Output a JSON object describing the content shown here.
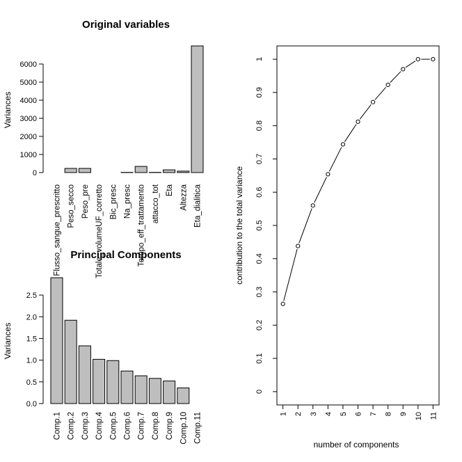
{
  "chart_data": [
    {
      "type": "bar",
      "title": "Original variables",
      "xlabel": "",
      "ylabel": "Variances",
      "ylim": [
        0,
        7000
      ],
      "yticks": [
        0,
        1000,
        2000,
        3000,
        4000,
        5000,
        6000
      ],
      "categories": [
        "Flusso_sangue_prescritto",
        "Peso_secco",
        "Peso_pre",
        "Totale_volumeUF_corretto",
        "Bic_presc",
        "Na_presc",
        "Tempo_eff_trattamento",
        "attacco_tot",
        "Eta",
        "Altezza",
        "Eta_dialitica"
      ],
      "values": [
        0,
        230,
        230,
        0,
        0,
        10,
        340,
        10,
        150,
        80,
        7000
      ],
      "bar_color": "#bebebe"
    },
    {
      "type": "bar",
      "title": "Principal Components",
      "xlabel": "",
      "ylabel": "Variances",
      "ylim": [
        0,
        2.95
      ],
      "yticks": [
        0.0,
        0.5,
        1.0,
        1.5,
        2.0,
        2.5
      ],
      "categories": [
        "Comp.1",
        "Comp.2",
        "Comp.3",
        "Comp.4",
        "Comp.5",
        "Comp.6",
        "Comp.7",
        "Comp.8",
        "Comp.9",
        "Comp.10",
        "Comp.11"
      ],
      "values": [
        2.9,
        1.92,
        1.33,
        1.02,
        0.99,
        0.75,
        0.64,
        0.58,
        0.52,
        0.36,
        0.0
      ],
      "bar_color": "#bebebe"
    },
    {
      "type": "line",
      "title": "",
      "xlabel": "number of components",
      "ylabel": "contribution to the total variance",
      "x": [
        1,
        2,
        3,
        4,
        5,
        6,
        7,
        8,
        9,
        10,
        11
      ],
      "y": [
        0.264,
        0.438,
        0.56,
        0.654,
        0.744,
        0.812,
        0.871,
        0.923,
        0.97,
        1.0,
        1.0
      ],
      "xlim": [
        0.6,
        11.4
      ],
      "ylim": [
        -0.04,
        1.04
      ],
      "xticks": [
        1,
        2,
        3,
        4,
        5,
        6,
        7,
        8,
        9,
        10,
        11
      ],
      "yticks": [
        0,
        0.1,
        0.2,
        0.3,
        0.4,
        0.5,
        0.6,
        0.7,
        0.8,
        0.9,
        1
      ],
      "marker": "open-circle"
    }
  ]
}
